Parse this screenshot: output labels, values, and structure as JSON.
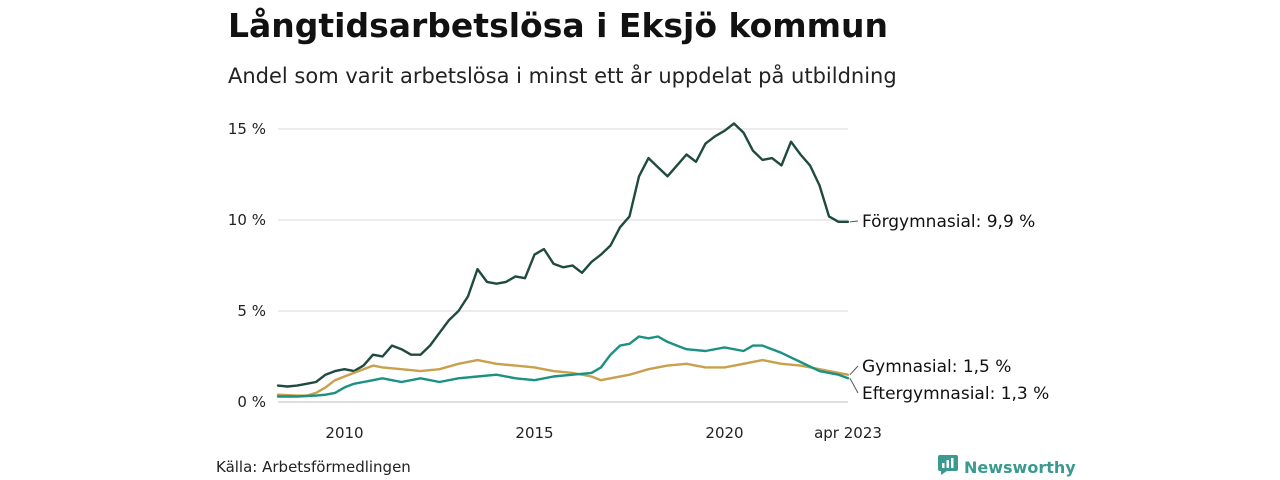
{
  "title": "Långtidsarbetslösa i Eksjö kommun",
  "subtitle": "Andel som varit arbetslösa i minst ett år uppdelat på utbildning",
  "source": "Källa: Arbetsförmedlingen",
  "brand": {
    "name": "Newsworthy",
    "icon": "newsworthy-logo-icon",
    "color": "#3a9a8f"
  },
  "chart_data": {
    "type": "line",
    "x_unit": "year",
    "xlim": [
      2008.25,
      2023.25
    ],
    "ylim": [
      0,
      15
    ],
    "yticks": [
      0,
      5,
      10,
      15
    ],
    "ytick_labels": [
      "0 %",
      "5 %",
      "10 %",
      "15 %"
    ],
    "xticks": [
      2010,
      2015,
      2020,
      2023.25
    ],
    "xtick_labels": [
      "2010",
      "2015",
      "2020",
      "apr 2023"
    ],
    "grid": "horizontal",
    "series": [
      {
        "name": "Förgymnasial",
        "end_label": "Förgymnasial: 9,9 %",
        "color": "#1f4a40",
        "points": [
          [
            2008.25,
            0.9
          ],
          [
            2008.5,
            0.85
          ],
          [
            2008.75,
            0.9
          ],
          [
            2009.0,
            1.0
          ],
          [
            2009.25,
            1.1
          ],
          [
            2009.5,
            1.5
          ],
          [
            2009.75,
            1.7
          ],
          [
            2010.0,
            1.8
          ],
          [
            2010.25,
            1.7
          ],
          [
            2010.5,
            2.0
          ],
          [
            2010.75,
            2.6
          ],
          [
            2011.0,
            2.5
          ],
          [
            2011.25,
            3.1
          ],
          [
            2011.5,
            2.9
          ],
          [
            2011.75,
            2.6
          ],
          [
            2012.0,
            2.6
          ],
          [
            2012.25,
            3.1
          ],
          [
            2012.5,
            3.8
          ],
          [
            2012.75,
            4.5
          ],
          [
            2013.0,
            5.0
          ],
          [
            2013.25,
            5.8
          ],
          [
            2013.5,
            7.3
          ],
          [
            2013.75,
            6.6
          ],
          [
            2014.0,
            6.5
          ],
          [
            2014.25,
            6.6
          ],
          [
            2014.5,
            6.9
          ],
          [
            2014.75,
            6.8
          ],
          [
            2015.0,
            8.1
          ],
          [
            2015.25,
            8.4
          ],
          [
            2015.5,
            7.6
          ],
          [
            2015.75,
            7.4
          ],
          [
            2016.0,
            7.5
          ],
          [
            2016.25,
            7.1
          ],
          [
            2016.5,
            7.7
          ],
          [
            2016.75,
            8.1
          ],
          [
            2017.0,
            8.6
          ],
          [
            2017.25,
            9.6
          ],
          [
            2017.5,
            10.2
          ],
          [
            2017.75,
            12.4
          ],
          [
            2018.0,
            13.4
          ],
          [
            2018.25,
            12.9
          ],
          [
            2018.5,
            12.4
          ],
          [
            2018.75,
            13.0
          ],
          [
            2019.0,
            13.6
          ],
          [
            2019.25,
            13.2
          ],
          [
            2019.5,
            14.2
          ],
          [
            2019.75,
            14.6
          ],
          [
            2020.0,
            14.9
          ],
          [
            2020.25,
            15.3
          ],
          [
            2020.5,
            14.8
          ],
          [
            2020.75,
            13.8
          ],
          [
            2021.0,
            13.3
          ],
          [
            2021.25,
            13.4
          ],
          [
            2021.5,
            13.0
          ],
          [
            2021.75,
            14.3
          ],
          [
            2022.0,
            13.6
          ],
          [
            2022.25,
            13.0
          ],
          [
            2022.5,
            11.9
          ],
          [
            2022.75,
            10.2
          ],
          [
            2023.0,
            9.9
          ],
          [
            2023.25,
            9.9
          ]
        ]
      },
      {
        "name": "Gymnasial",
        "end_label": "Gymnasial: 1,5 %",
        "color": "#c9a04b",
        "points": [
          [
            2008.25,
            0.4
          ],
          [
            2008.75,
            0.35
          ],
          [
            2009.0,
            0.35
          ],
          [
            2009.25,
            0.5
          ],
          [
            2009.5,
            0.8
          ],
          [
            2009.75,
            1.2
          ],
          [
            2010.0,
            1.4
          ],
          [
            2010.25,
            1.6
          ],
          [
            2010.5,
            1.8
          ],
          [
            2010.75,
            2.0
          ],
          [
            2011.0,
            1.9
          ],
          [
            2011.5,
            1.8
          ],
          [
            2012.0,
            1.7
          ],
          [
            2012.5,
            1.8
          ],
          [
            2013.0,
            2.1
          ],
          [
            2013.5,
            2.3
          ],
          [
            2014.0,
            2.1
          ],
          [
            2014.5,
            2.0
          ],
          [
            2015.0,
            1.9
          ],
          [
            2015.5,
            1.7
          ],
          [
            2016.0,
            1.6
          ],
          [
            2016.5,
            1.4
          ],
          [
            2016.75,
            1.2
          ],
          [
            2017.0,
            1.3
          ],
          [
            2017.5,
            1.5
          ],
          [
            2018.0,
            1.8
          ],
          [
            2018.5,
            2.0
          ],
          [
            2019.0,
            2.1
          ],
          [
            2019.5,
            1.9
          ],
          [
            2020.0,
            1.9
          ],
          [
            2020.5,
            2.1
          ],
          [
            2021.0,
            2.3
          ],
          [
            2021.5,
            2.1
          ],
          [
            2022.0,
            2.0
          ],
          [
            2022.5,
            1.8
          ],
          [
            2023.0,
            1.6
          ],
          [
            2023.25,
            1.5
          ]
        ]
      },
      {
        "name": "Eftergymnasial",
        "end_label": "Eftergymnasial: 1,3 %",
        "color": "#1b9184",
        "points": [
          [
            2008.25,
            0.3
          ],
          [
            2008.75,
            0.3
          ],
          [
            2009.25,
            0.35
          ],
          [
            2009.5,
            0.4
          ],
          [
            2009.75,
            0.5
          ],
          [
            2010.0,
            0.8
          ],
          [
            2010.25,
            1.0
          ],
          [
            2010.5,
            1.1
          ],
          [
            2010.75,
            1.2
          ],
          [
            2011.0,
            1.3
          ],
          [
            2011.25,
            1.2
          ],
          [
            2011.5,
            1.1
          ],
          [
            2012.0,
            1.3
          ],
          [
            2012.5,
            1.1
          ],
          [
            2013.0,
            1.3
          ],
          [
            2013.5,
            1.4
          ],
          [
            2014.0,
            1.5
          ],
          [
            2014.5,
            1.3
          ],
          [
            2015.0,
            1.2
          ],
          [
            2015.5,
            1.4
          ],
          [
            2016.0,
            1.5
          ],
          [
            2016.5,
            1.6
          ],
          [
            2016.75,
            1.9
          ],
          [
            2017.0,
            2.6
          ],
          [
            2017.25,
            3.1
          ],
          [
            2017.5,
            3.2
          ],
          [
            2017.75,
            3.6
          ],
          [
            2018.0,
            3.5
          ],
          [
            2018.25,
            3.6
          ],
          [
            2018.5,
            3.3
          ],
          [
            2018.75,
            3.1
          ],
          [
            2019.0,
            2.9
          ],
          [
            2019.5,
            2.8
          ],
          [
            2020.0,
            3.0
          ],
          [
            2020.5,
            2.8
          ],
          [
            2020.75,
            3.1
          ],
          [
            2021.0,
            3.1
          ],
          [
            2021.5,
            2.7
          ],
          [
            2022.0,
            2.2
          ],
          [
            2022.5,
            1.7
          ],
          [
            2023.0,
            1.5
          ],
          [
            2023.25,
            1.3
          ]
        ]
      }
    ]
  }
}
